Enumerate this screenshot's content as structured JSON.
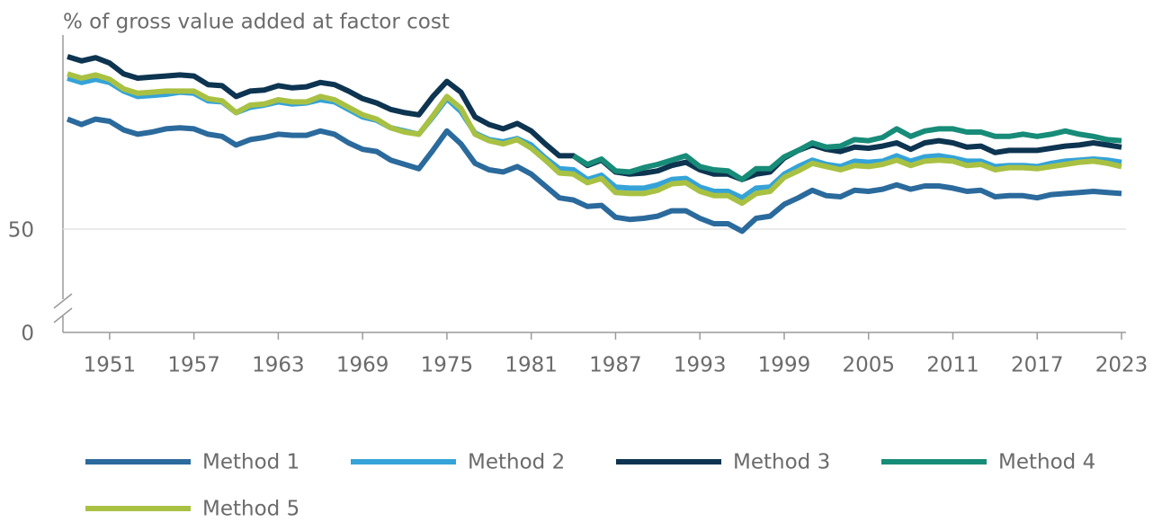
{
  "chart_data": {
    "type": "line",
    "y_label": "% of gross value added at factor cost",
    "x": [
      1948,
      1949,
      1950,
      1951,
      1952,
      1953,
      1954,
      1955,
      1956,
      1957,
      1958,
      1959,
      1960,
      1961,
      1962,
      1963,
      1964,
      1965,
      1966,
      1967,
      1968,
      1969,
      1970,
      1971,
      1972,
      1973,
      1974,
      1975,
      1976,
      1977,
      1978,
      1979,
      1980,
      1981,
      1982,
      1983,
      1984,
      1985,
      1986,
      1987,
      1988,
      1989,
      1990,
      1991,
      1992,
      1993,
      1994,
      1995,
      1996,
      1997,
      1998,
      1999,
      2000,
      2001,
      2002,
      2003,
      2004,
      2005,
      2006,
      2007,
      2008,
      2009,
      2010,
      2011,
      2012,
      2013,
      2014,
      2015,
      2016,
      2017,
      2018,
      2019,
      2020,
      2021,
      2022,
      2023
    ],
    "series": [
      {
        "name": "Method 1",
        "color": "#2b6a9c",
        "values": [
          60.2,
          59.7,
          60.2,
          60.0,
          59.2,
          58.8,
          59.0,
          59.3,
          59.4,
          59.3,
          58.8,
          58.6,
          57.8,
          58.3,
          58.5,
          58.8,
          58.7,
          58.7,
          59.1,
          58.8,
          58.0,
          57.4,
          57.2,
          56.4,
          56.0,
          55.6,
          57.3,
          59.1,
          57.9,
          56.1,
          55.5,
          55.3,
          55.8,
          55.1,
          54.0,
          52.9,
          52.7,
          52.1,
          52.2,
          51.1,
          50.9,
          51.0,
          51.2,
          51.7,
          51.7,
          51.0,
          50.5,
          50.5,
          49.8,
          51.0,
          51.2,
          52.3,
          52.9,
          53.6,
          53.1,
          53.0,
          53.6,
          53.5,
          53.7,
          54.1,
          53.7,
          54.0,
          54.0,
          53.8,
          53.5,
          53.6,
          53.0,
          53.1,
          53.1,
          52.9,
          53.2,
          53.3,
          53.4,
          53.5,
          53.4,
          53.3
        ]
      },
      {
        "name": "Method 2",
        "color": "#35a3d8",
        "values": [
          64.0,
          63.6,
          63.9,
          63.6,
          62.8,
          62.3,
          62.4,
          62.5,
          62.7,
          62.6,
          61.9,
          61.8,
          60.8,
          61.3,
          61.5,
          61.8,
          61.6,
          61.7,
          62.0,
          61.8,
          61.1,
          60.4,
          60.1,
          59.4,
          59.1,
          58.8,
          60.4,
          62.1,
          60.9,
          58.9,
          58.3,
          58.1,
          58.4,
          57.8,
          56.6,
          55.6,
          55.5,
          54.6,
          55.0,
          53.9,
          53.8,
          53.8,
          54.1,
          54.6,
          54.7,
          53.9,
          53.5,
          53.5,
          52.9,
          53.8,
          53.9,
          55.1,
          55.8,
          56.4,
          56.0,
          55.8,
          56.3,
          56.2,
          56.3,
          56.8,
          56.3,
          56.7,
          56.8,
          56.6,
          56.3,
          56.3,
          55.8,
          55.9,
          55.9,
          55.8,
          56.1,
          56.3,
          56.4,
          56.5,
          56.4,
          56.2
        ]
      },
      {
        "name": "Method 3",
        "color": "#0d3450",
        "values": [
          66.0,
          65.6,
          65.9,
          65.4,
          64.4,
          64.0,
          64.1,
          64.2,
          64.3,
          64.2,
          63.4,
          63.3,
          62.3,
          62.8,
          62.9,
          63.3,
          63.1,
          63.2,
          63.6,
          63.4,
          62.8,
          62.1,
          61.7,
          61.1,
          60.8,
          60.6,
          62.3,
          63.7,
          62.7,
          60.4,
          59.7,
          59.3,
          59.8,
          59.1,
          57.9,
          56.8,
          56.8,
          55.9,
          56.4,
          55.3,
          55.1,
          55.2,
          55.4,
          55.9,
          56.2,
          55.5,
          55.1,
          55.1,
          54.6,
          55.1,
          55.3,
          56.6,
          57.3,
          57.8,
          57.4,
          57.2,
          57.6,
          57.5,
          57.7,
          58.0,
          57.4,
          58.0,
          58.2,
          58.0,
          57.6,
          57.7,
          57.1,
          57.3,
          57.3,
          57.3,
          57.5,
          57.7,
          57.8,
          58.0,
          57.8,
          57.6
        ]
      },
      {
        "name": "Method 4",
        "color": "#178c78",
        "values": [
          null,
          null,
          null,
          null,
          null,
          null,
          null,
          null,
          null,
          null,
          null,
          null,
          null,
          null,
          null,
          null,
          null,
          null,
          null,
          null,
          null,
          null,
          null,
          null,
          null,
          null,
          null,
          null,
          null,
          null,
          null,
          null,
          null,
          null,
          null,
          null,
          56.8,
          56.0,
          56.5,
          55.4,
          55.3,
          55.7,
          56.0,
          56.4,
          56.8,
          55.8,
          55.5,
          55.4,
          54.6,
          55.6,
          55.6,
          56.7,
          57.3,
          58.0,
          57.6,
          57.7,
          58.3,
          58.2,
          58.5,
          59.3,
          58.6,
          59.1,
          59.3,
          59.3,
          59.0,
          59.0,
          58.6,
          58.6,
          58.8,
          58.6,
          58.8,
          59.1,
          58.8,
          58.6,
          58.3,
          58.2
        ]
      },
      {
        "name": "Method 5",
        "color": "#a9c143",
        "values": [
          64.4,
          64.0,
          64.3,
          63.9,
          63.0,
          62.6,
          62.7,
          62.8,
          62.8,
          62.8,
          62.1,
          61.9,
          60.8,
          61.5,
          61.6,
          62.0,
          61.8,
          61.8,
          62.3,
          62.0,
          61.3,
          60.6,
          60.2,
          59.4,
          59.0,
          58.8,
          60.5,
          62.3,
          61.2,
          58.8,
          58.2,
          57.9,
          58.3,
          57.5,
          56.4,
          55.2,
          55.1,
          54.3,
          54.7,
          53.4,
          53.3,
          53.3,
          53.6,
          54.2,
          54.3,
          53.5,
          53.1,
          53.1,
          52.4,
          53.3,
          53.5,
          54.8,
          55.4,
          56.1,
          55.8,
          55.5,
          55.9,
          55.8,
          56.0,
          56.4,
          55.9,
          56.3,
          56.4,
          56.3,
          55.9,
          56.0,
          55.5,
          55.7,
          55.7,
          55.6,
          55.8,
          56.0,
          56.2,
          56.3,
          56.1,
          55.8
        ]
      }
    ],
    "xlim": [
      1948,
      2023
    ],
    "xticks": [
      1951,
      1957,
      1963,
      1969,
      1975,
      1981,
      1987,
      1993,
      1999,
      2005,
      2011,
      2017,
      2023
    ],
    "ylim": [
      0,
      68
    ],
    "ybreak": [
      0,
      44
    ],
    "yticks": [
      0,
      50
    ],
    "grid": true,
    "legend": "bottom"
  }
}
